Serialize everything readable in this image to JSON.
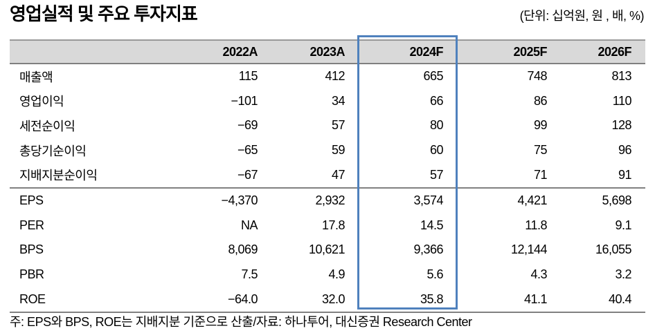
{
  "page": {
    "title": "영업실적 및 주요 투자지표",
    "units_note": "(단위: 십억원, 원 , 배, %)",
    "footnote": "주: EPS와 BPS, ROE는 지배지분 기준으로 산출/자료: 하나투어, 대신증권 Research Center"
  },
  "colors": {
    "header_bg": "#d9d9d9",
    "rule_dark": "#808080",
    "highlight_border": "#4f81bd"
  },
  "chart_data": {
    "type": "table",
    "title": "영업실적 및 주요 투자지표",
    "columns": [
      "",
      "2022A",
      "2023A",
      "2024F",
      "2025F",
      "2026F"
    ],
    "highlighted_column": "2024F",
    "sections": [
      {
        "rows": [
          {
            "label": "매출액",
            "values": [
              "115",
              "412",
              "665",
              "748",
              "813"
            ]
          },
          {
            "label": "영업이익",
            "values": [
              "−101",
              "34",
              "66",
              "86",
              "110"
            ]
          },
          {
            "label": "세전순이익",
            "values": [
              "−69",
              "57",
              "80",
              "99",
              "128"
            ]
          },
          {
            "label": "총당기순이익",
            "values": [
              "−65",
              "59",
              "60",
              "75",
              "96"
            ]
          },
          {
            "label": "지배지분순이익",
            "values": [
              "−67",
              "47",
              "57",
              "71",
              "91"
            ]
          }
        ]
      },
      {
        "rows": [
          {
            "label": "EPS",
            "values": [
              "−4,370",
              "2,932",
              "3,574",
              "4,421",
              "5,698"
            ]
          },
          {
            "label": "PER",
            "values": [
              "NA",
              "17.8",
              "14.5",
              "11.8",
              "9.1"
            ]
          },
          {
            "label": "BPS",
            "values": [
              "8,069",
              "10,621",
              "9,366",
              "12,144",
              "16,055"
            ]
          },
          {
            "label": "PBR",
            "values": [
              "7.5",
              "4.9",
              "5.6",
              "4.3",
              "3.2"
            ]
          },
          {
            "label": "ROE",
            "values": [
              "−64.0",
              "32.0",
              "35.8",
              "41.1",
              "40.4"
            ]
          }
        ]
      }
    ]
  }
}
